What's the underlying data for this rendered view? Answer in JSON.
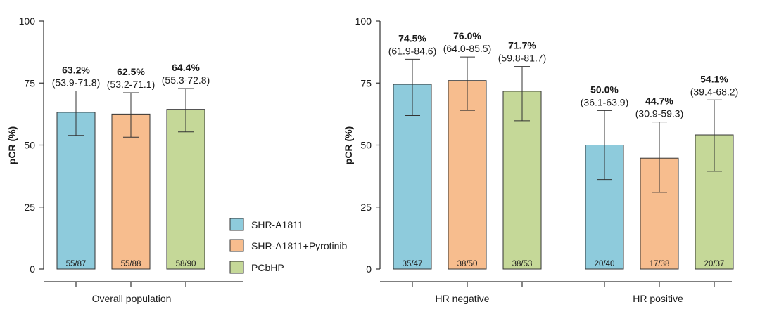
{
  "colors": {
    "SHR-A1811": "#8ecbdc",
    "SHR-A1811+Pyrotinib": "#f7bd8e",
    "PCbHP": "#c5d898"
  },
  "legend": {
    "entries": [
      {
        "label": "SHR-A1811",
        "color": "#8ecbdc"
      },
      {
        "label": "SHR-A1811+Pyrotinib",
        "color": "#f7bd8e"
      },
      {
        "label": "PCbHP",
        "color": "#c5d898"
      }
    ],
    "placement": "center"
  },
  "chart_data": [
    {
      "type": "bar",
      "title": "",
      "ylabel": "pCR (%)",
      "xlabel": "",
      "ylim": [
        0,
        100
      ],
      "yticks": [
        "0",
        "25",
        "50",
        "75",
        "100"
      ],
      "categories": [
        "Overall population"
      ],
      "series": [
        {
          "name": "SHR-A1811",
          "values": [
            63.2
          ],
          "ci_low": [
            53.9
          ],
          "ci_high": [
            71.8
          ],
          "labels": [
            "63.2%"
          ],
          "ci_labels": [
            "(53.9-71.8)"
          ],
          "counts": [
            "55/87"
          ]
        },
        {
          "name": "SHR-A1811+Pyrotinib",
          "values": [
            62.5
          ],
          "ci_low": [
            53.2
          ],
          "ci_high": [
            71.1
          ],
          "labels": [
            "62.5%"
          ],
          "ci_labels": [
            "(53.2-71.1)"
          ],
          "counts": [
            "55/88"
          ]
        },
        {
          "name": "PCbHP",
          "values": [
            64.4
          ],
          "ci_low": [
            55.3
          ],
          "ci_high": [
            72.8
          ],
          "labels": [
            "64.4%"
          ],
          "ci_labels": [
            "(55.3-72.8)"
          ],
          "counts": [
            "58/90"
          ]
        }
      ]
    },
    {
      "type": "bar",
      "title": "",
      "ylabel": "pCR (%)",
      "xlabel": "",
      "ylim": [
        0,
        100
      ],
      "yticks": [
        "0",
        "25",
        "50",
        "75",
        "100"
      ],
      "categories": [
        "HR negative",
        "HR positive"
      ],
      "series": [
        {
          "name": "SHR-A1811",
          "values": [
            74.5,
            50.0
          ],
          "ci_low": [
            61.9,
            36.1
          ],
          "ci_high": [
            84.6,
            63.9
          ],
          "labels": [
            "74.5%",
            "50.0%"
          ],
          "ci_labels": [
            "(61.9-84.6)",
            "(36.1-63.9)"
          ],
          "counts": [
            "35/47",
            "20/40"
          ]
        },
        {
          "name": "SHR-A1811+Pyrotinib",
          "values": [
            76.0,
            44.7
          ],
          "ci_low": [
            64.0,
            30.9
          ],
          "ci_high": [
            85.5,
            59.3
          ],
          "labels": [
            "76.0%",
            "44.7%"
          ],
          "ci_labels": [
            "(64.0-85.5)",
            "(30.9-59.3)"
          ],
          "counts": [
            "38/50",
            "17/38"
          ]
        },
        {
          "name": "PCbHP",
          "values": [
            71.7,
            54.1
          ],
          "ci_low": [
            59.8,
            39.4
          ],
          "ci_high": [
            81.7,
            68.2
          ],
          "labels": [
            "71.7%",
            "54.1%"
          ],
          "ci_labels": [
            "(59.8-81.7)",
            "(39.4-68.2)"
          ],
          "counts": [
            "38/53",
            "20/37"
          ]
        }
      ]
    }
  ]
}
